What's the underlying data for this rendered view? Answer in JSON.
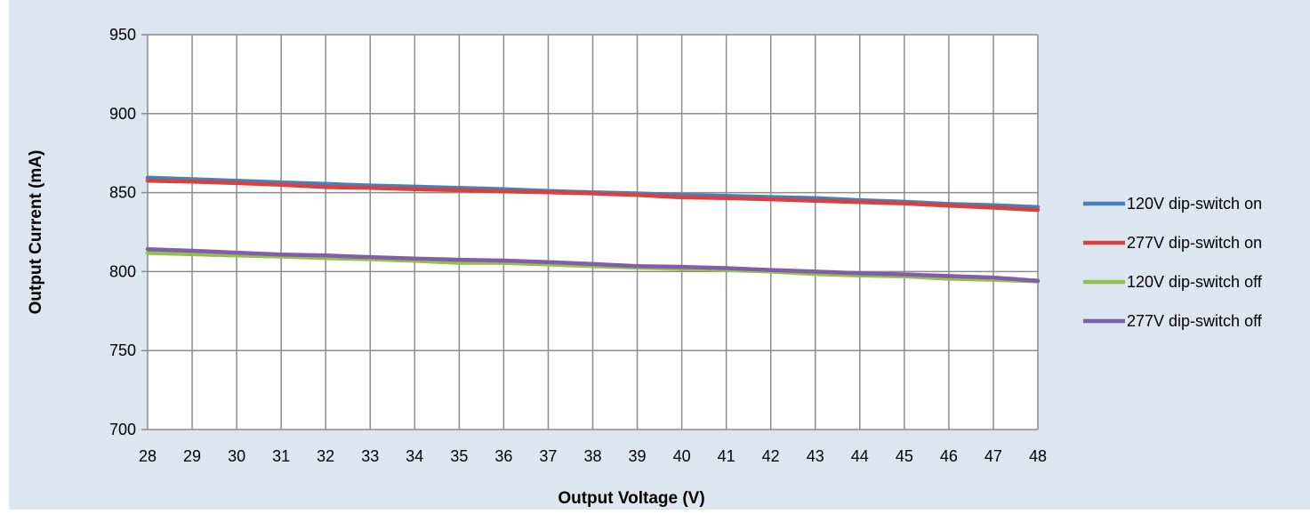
{
  "chart_data": {
    "type": "line",
    "title": "",
    "xlabel": "Output Voltage (V)",
    "ylabel": "Output Current (mA)",
    "x": [
      28,
      29,
      30,
      31,
      32,
      33,
      34,
      35,
      36,
      37,
      38,
      39,
      40,
      41,
      42,
      43,
      44,
      45,
      46,
      47,
      48
    ],
    "xlim": [
      28,
      48
    ],
    "ylim": [
      700,
      950
    ],
    "yticks": [
      700,
      750,
      800,
      850,
      900,
      950
    ],
    "grid": true,
    "legend_position": "right",
    "series": [
      {
        "name": "120V dip-switch on",
        "color": "#4a7ebb",
        "values": [
          859.5,
          858.5,
          857.5,
          856.5,
          855.5,
          854.5,
          853.8,
          853.0,
          852.2,
          851.0,
          850.2,
          849.5,
          848.5,
          848.0,
          847.2,
          846.5,
          845.2,
          844.2,
          842.8,
          842.0,
          840.8
        ]
      },
      {
        "name": "277V dip-switch on",
        "color": "#d9413e",
        "values": [
          857.5,
          857.0,
          856.0,
          855.0,
          853.5,
          853.0,
          852.2,
          851.5,
          850.8,
          850.2,
          849.5,
          848.5,
          847.0,
          846.5,
          845.8,
          844.8,
          844.0,
          843.2,
          841.8,
          840.5,
          839.0
        ]
      },
      {
        "name": "120V dip-switch off",
        "color": "#94c047",
        "values": [
          811.8,
          811.0,
          810.2,
          809.5,
          808.5,
          807.8,
          806.8,
          805.5,
          805.5,
          804.5,
          803.5,
          802.5,
          801.8,
          801.0,
          800.0,
          798.5,
          797.5,
          797.0,
          795.5,
          794.8,
          793.8
        ]
      },
      {
        "name": "277V dip-switch off",
        "color": "#7f5fa9",
        "values": [
          814.2,
          813.2,
          812.0,
          810.8,
          810.2,
          809.2,
          808.2,
          807.5,
          807.0,
          806.0,
          804.8,
          803.5,
          803.0,
          802.2,
          801.0,
          800.0,
          799.0,
          798.2,
          797.2,
          796.2,
          794.2
        ]
      }
    ]
  }
}
